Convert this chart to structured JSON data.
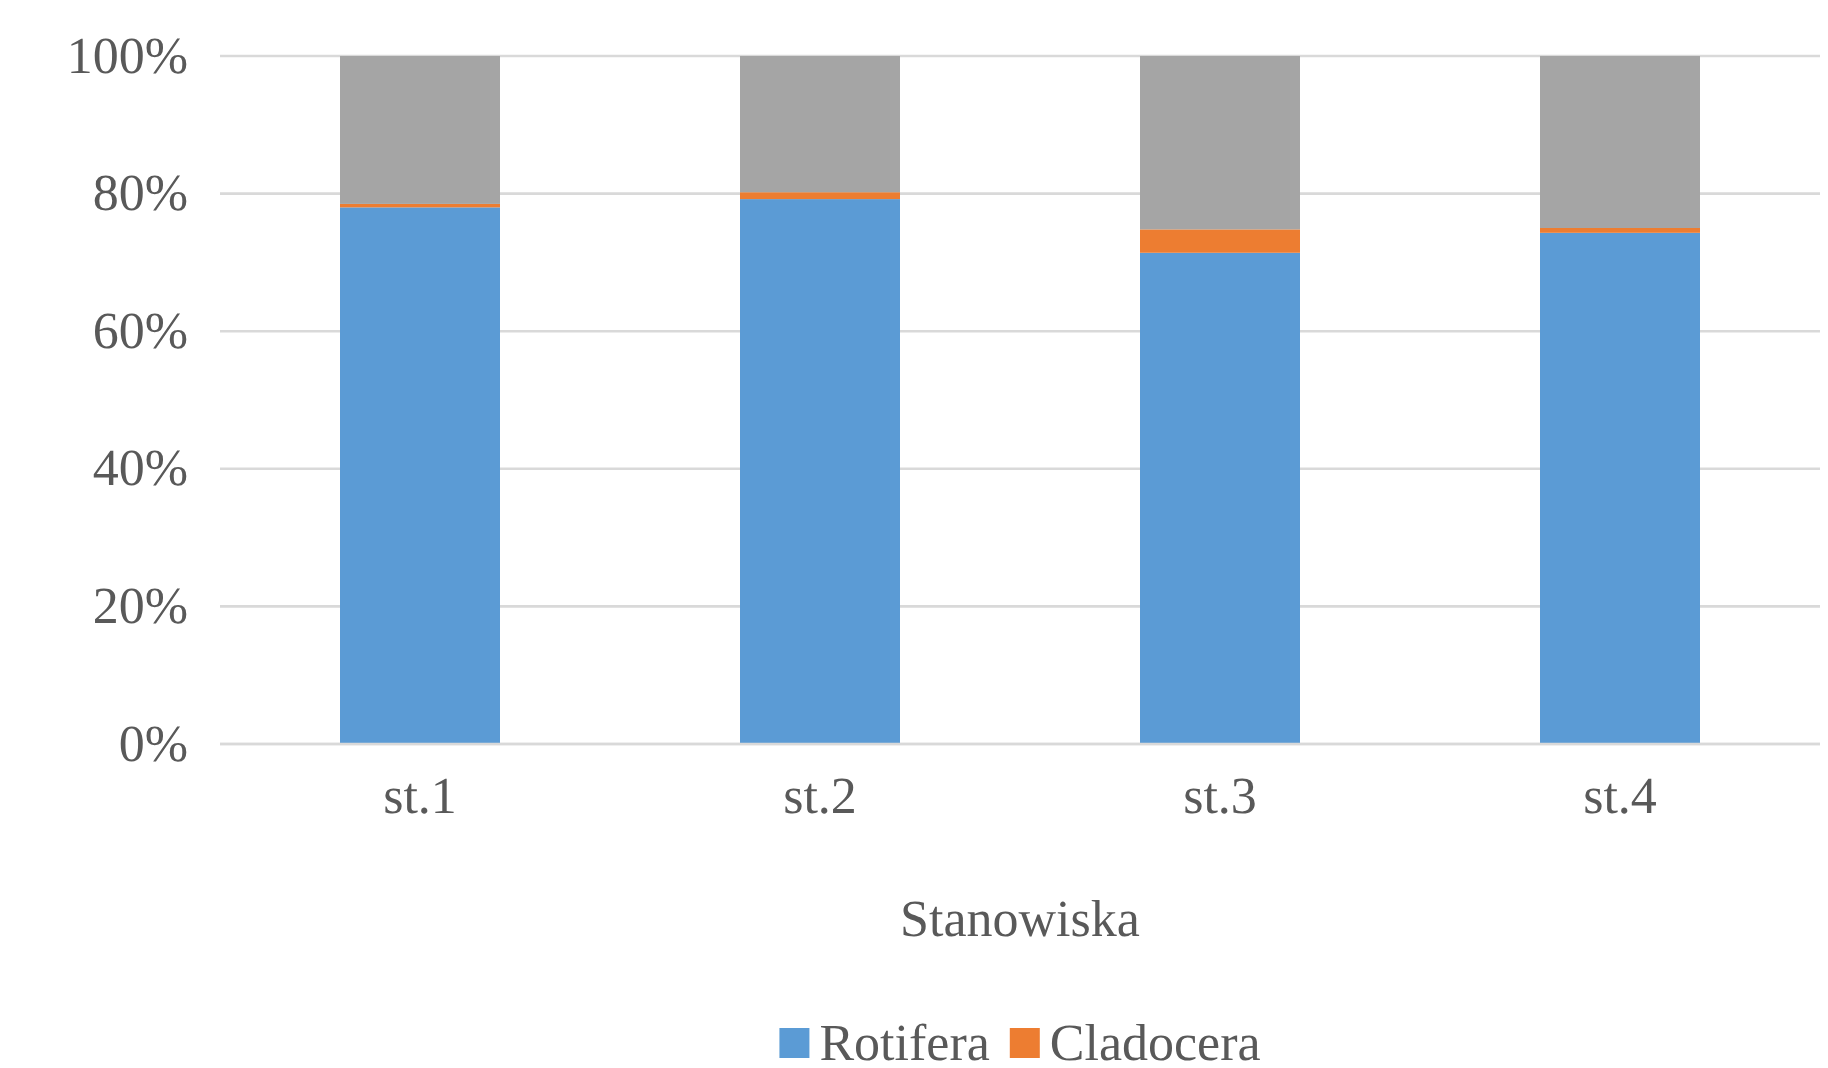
{
  "chart_data": {
    "type": "bar",
    "stacked": true,
    "xlabel": "Stanowiska",
    "categories": [
      "st.1",
      "st.2",
      "st.3",
      "st.4"
    ],
    "series": [
      {
        "name": "Rotifera",
        "color": "#5b9bd5",
        "values": [
          78,
          79.2,
          71.4,
          74.3
        ]
      },
      {
        "name": "Cladocera",
        "color": "#ed7d31",
        "values": [
          0.5,
          1,
          3.4,
          0.7
        ]
      },
      {
        "color": "#a5a5a5",
        "values": [
          21.5,
          19.8,
          25.2,
          25
        ]
      }
    ],
    "ylim": [
      0,
      100
    ],
    "yticks": [
      {
        "value": 0,
        "label": "0%"
      },
      {
        "value": 20,
        "label": "20%"
      },
      {
        "value": 40,
        "label": "40%"
      },
      {
        "value": 60,
        "label": "60%"
      },
      {
        "value": 80,
        "label": "80%"
      },
      {
        "value": 100,
        "label": "100%"
      }
    ],
    "grid": "y",
    "legend": "bottom"
  }
}
